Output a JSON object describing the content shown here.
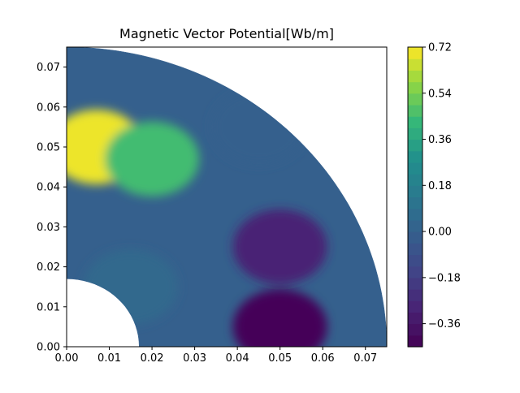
{
  "chart_data": {
    "type": "heatmap",
    "title": "Magnetic Vector Potential[Wb/m]",
    "xlabel": "",
    "ylabel": "",
    "xlim": [
      0.0,
      0.075
    ],
    "ylim": [
      0.0,
      0.075
    ],
    "x_ticks": [
      "0.00",
      "0.01",
      "0.02",
      "0.03",
      "0.04",
      "0.05",
      "0.06",
      "0.07"
    ],
    "y_ticks": [
      "0.00",
      "0.01",
      "0.02",
      "0.03",
      "0.04",
      "0.05",
      "0.06",
      "0.07"
    ],
    "colorbar": {
      "colormap": "viridis",
      "range": [
        -0.45,
        0.72
      ],
      "ticks": [
        "0.72",
        "0.54",
        "0.36",
        "0.18",
        "0.00",
        "−0.18",
        "−0.36"
      ],
      "tick_values": [
        0.72,
        0.54,
        0.36,
        0.18,
        0.0,
        -0.18,
        -0.36
      ],
      "levels": 26
    },
    "domain": "quarter annulus, inner radius about 0.017 m, outer radius about 0.075 m",
    "regions": [
      {
        "approx_x": 0.007,
        "approx_y": 0.05,
        "value": 0.7
      },
      {
        "approx_x": 0.02,
        "approx_y": 0.047,
        "value": 0.45
      },
      {
        "approx_x": 0.015,
        "approx_y": 0.015,
        "value": 0.05
      },
      {
        "approx_x": 0.05,
        "approx_y": 0.025,
        "value": -0.3
      },
      {
        "approx_x": 0.05,
        "approx_y": 0.005,
        "value": -0.43
      },
      {
        "approx_x": 0.045,
        "approx_y": 0.055,
        "value": 0.0
      }
    ]
  }
}
